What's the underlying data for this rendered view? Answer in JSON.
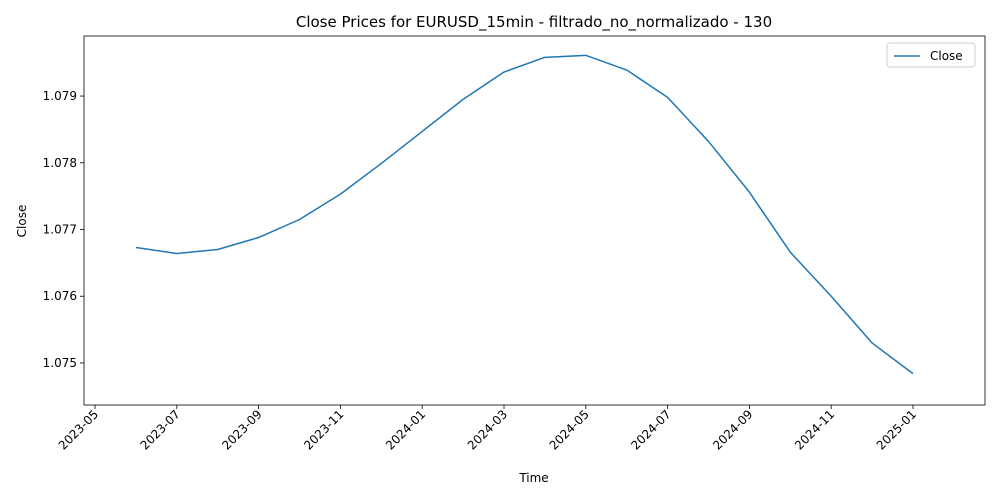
{
  "chart_data": {
    "type": "line",
    "title": "Close Prices for EURUSD_15min - filtrado_no_normalizado - 130",
    "x_label": "Time",
    "y_label": "Close",
    "x": [
      "2023-06",
      "2023-07",
      "2023-08",
      "2023-09",
      "2023-10",
      "2023-11",
      "2023-12",
      "2024-01",
      "2024-02",
      "2024-03",
      "2024-04",
      "2024-05",
      "2024-06",
      "2024-07",
      "2024-08",
      "2024-09",
      "2024-10",
      "2024-11",
      "2024-12",
      "2025-01"
    ],
    "series": [
      {
        "name": "Close",
        "color": "#1f77b4",
        "values": [
          1.07673,
          1.07664,
          1.0767,
          1.07688,
          1.07715,
          1.07753,
          1.07799,
          1.07847,
          1.07895,
          1.07936,
          1.07958,
          1.07961,
          1.07939,
          1.07898,
          1.07832,
          1.07756,
          1.07666,
          1.076,
          1.0753,
          1.07484
        ]
      }
    ],
    "xticks": [
      "2023-05",
      "2023-07",
      "2023-09",
      "2023-11",
      "2024-01",
      "2024-03",
      "2024-05",
      "2024-07",
      "2024-09",
      "2024-11",
      "2025-01"
    ],
    "ylim": [
      1.07437,
      1.0799
    ],
    "yticks": [
      1.075,
      1.076,
      1.077,
      1.078,
      1.079
    ],
    "legend": "upper right",
    "grid": false
  }
}
